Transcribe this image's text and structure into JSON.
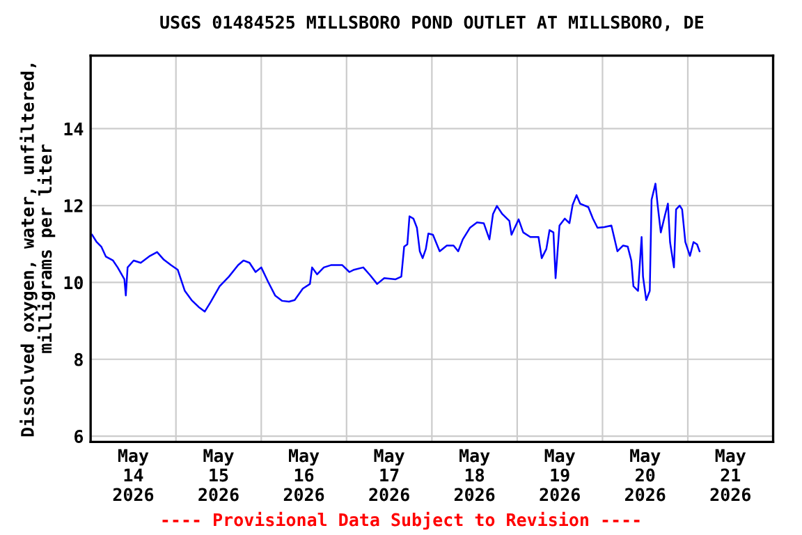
{
  "chart_data": {
    "type": "line",
    "title": "USGS 01484525 MILLSBORO POND OUTLET AT MILLSBORO, DE",
    "ylabel": "Dissolved oxygen, water, unfiltered,\nmilligrams per liter",
    "annotations": [
      "---- Provisional Data Subject to Revision ----"
    ],
    "xlim": [
      "2026-05-14T00:00",
      "2026-05-22T00:00"
    ],
    "xticks": [
      {
        "value": "2026-05-14T00:00",
        "label": null
      },
      {
        "value": "2026-05-14T12:00",
        "label": "May\n14\n2026"
      },
      {
        "value": "2026-05-15T00:00",
        "label": null
      },
      {
        "value": "2026-05-15T12:00",
        "label": "May\n15\n2026"
      },
      {
        "value": "2026-05-16T00:00",
        "label": null
      },
      {
        "value": "2026-05-16T12:00",
        "label": "May\n16\n2026"
      },
      {
        "value": "2026-05-17T00:00",
        "label": null
      },
      {
        "value": "2026-05-17T12:00",
        "label": "May\n17\n2026"
      },
      {
        "value": "2026-05-18T00:00",
        "label": null
      },
      {
        "value": "2026-05-18T12:00",
        "label": "May\n18\n2026"
      },
      {
        "value": "2026-05-19T00:00",
        "label": null
      },
      {
        "value": "2026-05-19T12:00",
        "label": "May\n19\n2026"
      },
      {
        "value": "2026-05-20T00:00",
        "label": null
      },
      {
        "value": "2026-05-20T12:00",
        "label": "May\n20\n2026"
      },
      {
        "value": "2026-05-21T00:00",
        "label": null
      },
      {
        "value": "2026-05-21T12:00",
        "label": "May\n21\n2026"
      }
    ],
    "ylim": [
      5.85,
      15.9
    ],
    "yticks": [
      6,
      8,
      10,
      12,
      14
    ],
    "grid": true,
    "marker": "none",
    "line_style": "solid",
    "x": [
      "2026-05-14T00:24",
      "2026-05-14T01:42",
      "2026-05-14T03:00",
      "2026-05-14T04:18",
      "2026-05-14T06:18",
      "2026-05-14T07:36",
      "2026-05-14T09:30",
      "2026-05-14T09:54",
      "2026-05-14T10:24",
      "2026-05-14T12:06",
      "2026-05-14T14:06",
      "2026-05-14T16:42",
      "2026-05-14T18:42",
      "2026-05-14T20:36",
      "2026-05-14T22:36",
      "2026-05-15T00:30",
      "2026-05-15T02:30",
      "2026-05-15T04:24",
      "2026-05-15T06:24",
      "2026-05-15T08:06",
      "2026-05-15T09:42",
      "2026-05-15T12:18",
      "2026-05-15T14:54",
      "2026-05-15T17:30",
      "2026-05-15T19:00",
      "2026-05-15T20:42",
      "2026-05-15T22:24",
      "2026-05-16T00:00",
      "2026-05-16T01:54",
      "2026-05-16T03:54",
      "2026-05-16T05:54",
      "2026-05-16T07:48",
      "2026-05-16T09:24",
      "2026-05-16T11:42",
      "2026-05-16T13:42",
      "2026-05-16T14:18",
      "2026-05-16T15:42",
      "2026-05-16T17:36",
      "2026-05-16T19:36",
      "2026-05-16T22:48",
      "2026-05-17T00:48",
      "2026-05-17T02:06",
      "2026-05-17T04:42",
      "2026-05-17T06:42",
      "2026-05-17T08:36",
      "2026-05-17T10:36",
      "2026-05-17T13:48",
      "2026-05-17T15:24",
      "2026-05-17T16:12",
      "2026-05-17T17:06",
      "2026-05-17T17:42",
      "2026-05-17T18:48",
      "2026-05-17T19:48",
      "2026-05-17T20:36",
      "2026-05-17T21:24",
      "2026-05-17T22:18",
      "2026-05-17T23:00",
      "2026-05-18T00:18",
      "2026-05-18T02:12",
      "2026-05-18T04:12",
      "2026-05-18T06:06",
      "2026-05-18T07:24",
      "2026-05-18T08:42",
      "2026-05-18T10:42",
      "2026-05-18T12:42",
      "2026-05-18T14:36",
      "2026-05-18T16:12",
      "2026-05-18T17:12",
      "2026-05-18T18:18",
      "2026-05-18T19:48",
      "2026-05-18T21:48",
      "2026-05-18T22:24",
      "2026-05-19T00:24",
      "2026-05-19T01:42",
      "2026-05-19T03:42",
      "2026-05-19T06:00",
      "2026-05-19T06:54",
      "2026-05-19T08:12",
      "2026-05-19T09:06",
      "2026-05-19T10:12",
      "2026-05-19T10:48",
      "2026-05-19T11:54",
      "2026-05-19T13:24",
      "2026-05-19T14:42",
      "2026-05-19T15:36",
      "2026-05-19T16:42",
      "2026-05-19T17:42",
      "2026-05-19T20:00",
      "2026-05-19T21:18",
      "2026-05-19T22:36",
      "2026-05-20T00:30",
      "2026-05-20T02:30",
      "2026-05-20T04:12",
      "2026-05-20T05:48",
      "2026-05-20T07:06",
      "2026-05-20T08:06",
      "2026-05-20T08:42",
      "2026-05-20T10:00",
      "2026-05-20T11:00",
      "2026-05-20T11:24",
      "2026-05-20T12:18",
      "2026-05-20T13:18",
      "2026-05-20T13:48",
      "2026-05-20T14:54",
      "2026-05-20T15:30",
      "2026-05-20T16:24",
      "2026-05-20T17:30",
      "2026-05-20T18:24",
      "2026-05-20T19:00",
      "2026-05-20T20:06",
      "2026-05-20T20:42",
      "2026-05-20T21:42",
      "2026-05-20T22:24",
      "2026-05-20T23:18",
      "2026-05-21T00:36",
      "2026-05-21T01:36",
      "2026-05-21T02:36",
      "2026-05-21T03:18"
    ],
    "series": [
      {
        "color": "#0000ff",
        "values": [
          11.24,
          11.05,
          10.93,
          10.67,
          10.57,
          10.39,
          10.08,
          9.66,
          10.39,
          10.57,
          10.51,
          10.69,
          10.79,
          10.59,
          10.45,
          10.33,
          9.78,
          9.54,
          9.36,
          9.24,
          9.48,
          9.9,
          10.15,
          10.45,
          10.57,
          10.51,
          10.27,
          10.39,
          10.02,
          9.66,
          9.52,
          9.5,
          9.54,
          9.84,
          9.96,
          10.39,
          10.21,
          10.39,
          10.45,
          10.45,
          10.27,
          10.33,
          10.39,
          10.18,
          9.96,
          10.11,
          10.08,
          10.15,
          10.93,
          10.99,
          11.72,
          11.66,
          11.42,
          10.81,
          10.63,
          10.87,
          11.27,
          11.24,
          10.81,
          10.96,
          10.96,
          10.81,
          11.12,
          11.42,
          11.56,
          11.54,
          11.12,
          11.78,
          11.99,
          11.78,
          11.6,
          11.24,
          11.64,
          11.3,
          11.18,
          11.18,
          10.63,
          10.87,
          11.36,
          11.3,
          10.11,
          11.48,
          11.66,
          11.54,
          12.02,
          12.27,
          12.05,
          11.96,
          11.66,
          11.42,
          11.44,
          11.48,
          10.81,
          10.96,
          10.93,
          10.57,
          9.9,
          9.78,
          11.18,
          10.15,
          9.54,
          9.78,
          12.15,
          12.57,
          12.02,
          11.3,
          11.72,
          12.05,
          11.05,
          10.39,
          11.9,
          12.0,
          11.9,
          11.05,
          10.69,
          11.05,
          10.99,
          10.81
        ]
      }
    ]
  }
}
